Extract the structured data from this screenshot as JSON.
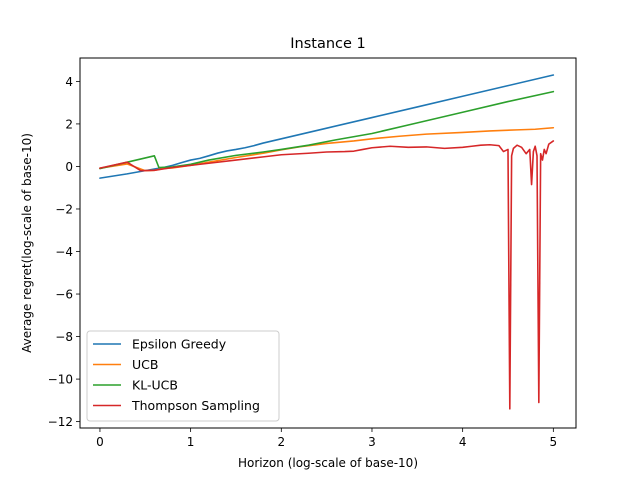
{
  "chart_data": {
    "type": "line",
    "title": "Instance 1",
    "xlabel": "Horizon (log-scale of base-10)",
    "ylabel": "Average regret(log-scale of base-10)",
    "xlim": [
      -0.22,
      5.25
    ],
    "ylim": [
      -12.3,
      5.1
    ],
    "xticks": [
      0,
      1,
      2,
      3,
      4,
      5
    ],
    "xtick_labels": [
      "0",
      "1",
      "2",
      "3",
      "4",
      "5"
    ],
    "yticks": [
      -12,
      -10,
      -8,
      -6,
      -4,
      -2,
      0,
      2,
      4
    ],
    "ytick_labels": [
      "−12",
      "−10",
      "−8",
      "−6",
      "−4",
      "−2",
      "0",
      "2",
      "4"
    ],
    "grid": false,
    "legend_position": "lower-left",
    "series": [
      {
        "name": "Epsilon Greedy",
        "color": "#1f77b4",
        "x": [
          0,
          0.3,
          0.6,
          0.7,
          0.8,
          0.9,
          1.0,
          1.1,
          1.2,
          1.3,
          1.4,
          1.5,
          1.6,
          1.7,
          1.8,
          2.0,
          2.5,
          3.0,
          3.5,
          4.0,
          4.5,
          5.0
        ],
        "y": [
          -0.55,
          -0.35,
          -0.12,
          -0.05,
          0.05,
          0.18,
          0.3,
          0.38,
          0.5,
          0.63,
          0.73,
          0.8,
          0.88,
          0.98,
          1.1,
          1.3,
          1.8,
          2.3,
          2.8,
          3.3,
          3.8,
          4.3
        ]
      },
      {
        "name": "UCB",
        "color": "#ff7f0e",
        "x": [
          0,
          0.3,
          0.5,
          0.6,
          0.7,
          0.8,
          1.0,
          1.2,
          1.5,
          1.8,
          2.0,
          2.2,
          2.5,
          2.8,
          3.0,
          3.3,
          3.6,
          4.0,
          4.3,
          4.6,
          4.8,
          5.0
        ],
        "y": [
          -0.08,
          0.12,
          -0.2,
          -0.18,
          -0.1,
          -0.07,
          0.05,
          0.2,
          0.42,
          0.62,
          0.78,
          0.92,
          1.08,
          1.2,
          1.3,
          1.42,
          1.52,
          1.6,
          1.67,
          1.72,
          1.75,
          1.82
        ]
      },
      {
        "name": "KL-UCB",
        "color": "#2ca02c",
        "x": [
          0,
          0.3,
          0.6,
          0.65,
          0.8,
          1.0,
          1.2,
          1.5,
          1.8,
          2.0,
          2.3,
          2.6,
          3.0,
          3.5,
          4.0,
          4.5,
          5.0
        ],
        "y": [
          -0.1,
          0.2,
          0.5,
          -0.05,
          -0.02,
          0.1,
          0.3,
          0.52,
          0.68,
          0.8,
          1.0,
          1.25,
          1.55,
          2.05,
          2.55,
          3.05,
          3.52
        ]
      },
      {
        "name": "Thompson Sampling",
        "color": "#d62728",
        "x": [
          0,
          0.3,
          0.45,
          0.6,
          0.8,
          1.0,
          1.2,
          1.5,
          1.8,
          2.0,
          2.3,
          2.5,
          2.7,
          2.8,
          2.9,
          3.0,
          3.2,
          3.4,
          3.6,
          3.8,
          4.0,
          4.1,
          4.2,
          4.3,
          4.4,
          4.45,
          4.5,
          4.52,
          4.54,
          4.56,
          4.6,
          4.65,
          4.7,
          4.74,
          4.76,
          4.78,
          4.8,
          4.82,
          4.84,
          4.86,
          4.88,
          4.9,
          4.92,
          4.95,
          5.0
        ],
        "y": [
          -0.08,
          0.2,
          -0.2,
          -0.18,
          -0.05,
          0.05,
          0.15,
          0.3,
          0.45,
          0.55,
          0.62,
          0.68,
          0.7,
          0.72,
          0.8,
          0.88,
          0.95,
          0.9,
          0.92,
          0.85,
          0.9,
          0.95,
          1.0,
          1.02,
          0.98,
          0.7,
          0.8,
          -11.4,
          0.5,
          0.85,
          1.0,
          0.9,
          0.6,
          0.8,
          -0.85,
          0.7,
          0.95,
          0.5,
          -11.1,
          0.6,
          0.3,
          0.8,
          0.6,
          1.05,
          1.2
        ]
      }
    ]
  }
}
